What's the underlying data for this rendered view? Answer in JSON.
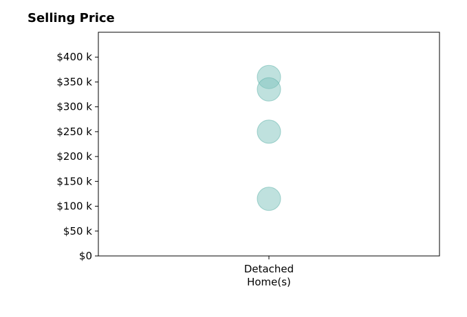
{
  "chart_data": {
    "type": "scatter",
    "title": "Selling Price",
    "xlabel": "",
    "ylabel": "",
    "categories": [
      "Detached\nHome(s)"
    ],
    "series": [
      {
        "category": "Detached\nHome(s)",
        "values": [
          360000,
          335000,
          250000,
          115000
        ]
      }
    ],
    "yticks": [
      0,
      50000,
      100000,
      150000,
      200000,
      250000,
      300000,
      350000,
      400000
    ],
    "ytick_labels": [
      "$0",
      "$50 k",
      "$100 k",
      "$150 k",
      "$200 k",
      "$250 k",
      "$300 k",
      "$350 k",
      "$400 k"
    ],
    "ylim": [
      0,
      450000
    ],
    "grid": false,
    "colors": {
      "marker_fill": "#7fc4bd",
      "marker_stroke": "#5fb3aa"
    }
  }
}
